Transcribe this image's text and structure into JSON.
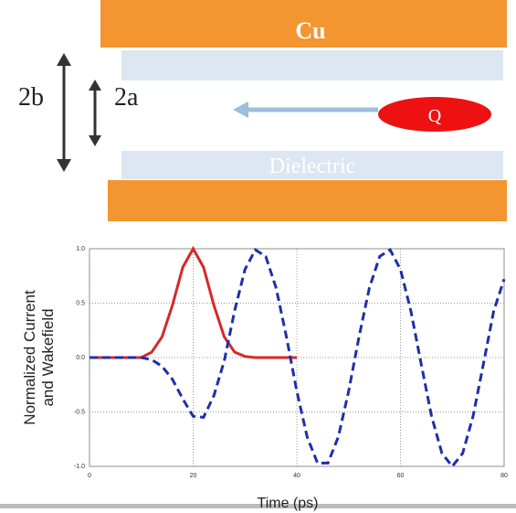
{
  "diagram": {
    "conductor": "Cu",
    "outer": "2b",
    "inner": "2a",
    "charge": "Q",
    "layer": "Dielectric"
  },
  "chart_data": {
    "type": "line",
    "y_label": [
      "Normalized Current",
      "and Wakefield"
    ],
    "x_label": "Time (ps)",
    "x": [
      0,
      2,
      4,
      6,
      8,
      10,
      12,
      14,
      16,
      18,
      20,
      22,
      24,
      26,
      28,
      30,
      32,
      34,
      36,
      38,
      40,
      42,
      44,
      46,
      48,
      50,
      52,
      54,
      56,
      58,
      60,
      62,
      64,
      66,
      68,
      70,
      72,
      74,
      76,
      78,
      80
    ],
    "series": [
      {
        "color": "#d42a2a",
        "dash": false,
        "values": [
          0,
          0,
          0,
          0,
          0,
          0,
          0.05,
          0.19,
          0.48,
          0.83,
          1,
          0.83,
          0.48,
          0.19,
          0.05,
          0.01,
          0,
          0,
          0,
          0,
          0,
          null,
          null,
          null,
          null,
          null,
          null,
          null,
          null,
          null,
          null,
          null,
          null,
          null,
          null,
          null,
          null,
          null,
          null,
          null,
          null
        ]
      },
      {
        "color": "#1f2fa8",
        "dash": true,
        "values": [
          0,
          0,
          0,
          0,
          0,
          0,
          -0.02,
          -0.08,
          -0.2,
          -0.38,
          -0.54,
          -0.55,
          -0.35,
          -0.03,
          0.43,
          0.81,
          0.99,
          0.93,
          0.64,
          0.19,
          -0.31,
          -0.73,
          -0.97,
          -0.97,
          -0.73,
          -0.31,
          0.19,
          0.64,
          0.93,
          0.99,
          0.81,
          0.43,
          -0.06,
          -0.54,
          -0.88,
          -1,
          -0.88,
          -0.54,
          -0.06,
          0.43,
          0.72
        ]
      }
    ],
    "xlim": [
      0,
      80
    ],
    "xticks": [
      0,
      20,
      40,
      60,
      80
    ],
    "ylim": [
      -1,
      1
    ],
    "yticks": [
      {
        "value": -1,
        "label": "-1.0"
      },
      {
        "value": -0.5,
        "label": "-0.5"
      },
      {
        "value": 0,
        "label": "0.0"
      },
      {
        "value": 0.5,
        "label": "0.5"
      },
      {
        "value": 1,
        "label": "1.0"
      }
    ],
    "grid": true
  }
}
